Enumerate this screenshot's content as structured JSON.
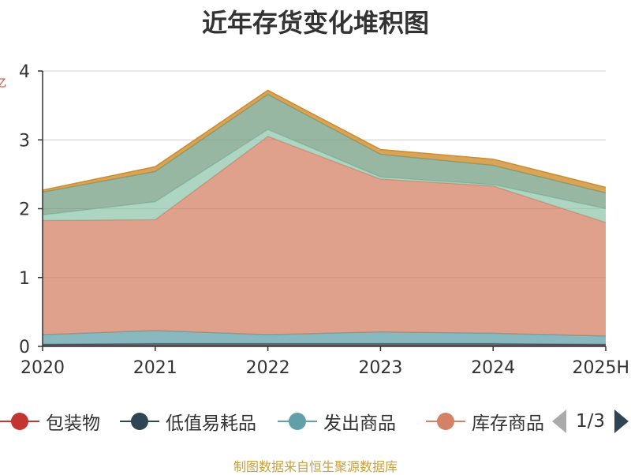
{
  "chart_data": {
    "type": "area",
    "stacked": true,
    "title": "近年存货变化堆积图",
    "ylabel": "亿",
    "categories": [
      "2020",
      "2021",
      "2022",
      "2023",
      "2024",
      "2025H"
    ],
    "ylim": [
      0,
      4
    ],
    "yticks": [
      "0",
      "1",
      "2",
      "3",
      "4"
    ],
    "grid": true,
    "series": [
      {
        "name": "包装物",
        "color": "#c23531",
        "values": [
          0.01,
          0.01,
          0.01,
          0.01,
          0.01,
          0.01
        ]
      },
      {
        "name": "低值易耗品",
        "color": "#2f4554",
        "values": [
          0.02,
          0.03,
          0.03,
          0.03,
          0.03,
          0.02
        ]
      },
      {
        "name": "发出商品",
        "color": "#61a0a8",
        "values": [
          0.14,
          0.19,
          0.13,
          0.17,
          0.15,
          0.12
        ]
      },
      {
        "name": "库存商品",
        "color": "#d48265",
        "values": [
          1.66,
          1.61,
          2.88,
          2.22,
          2.14,
          1.65
        ]
      },
      {
        "name": "",
        "color": "#91c7ae",
        "values": [
          0.08,
          0.26,
          0.1,
          0.03,
          0.02,
          0.2
        ]
      },
      {
        "name": "",
        "color": "#749f83",
        "values": [
          0.33,
          0.44,
          0.51,
          0.33,
          0.28,
          0.23
        ]
      },
      {
        "name": "",
        "color": "#ca8622",
        "values": [
          0.03,
          0.07,
          0.06,
          0.07,
          0.09,
          0.08
        ]
      }
    ],
    "legend": {
      "position": "bottom",
      "page": "1/3"
    }
  },
  "source_note": "制图数据来自恒生聚源数据库"
}
